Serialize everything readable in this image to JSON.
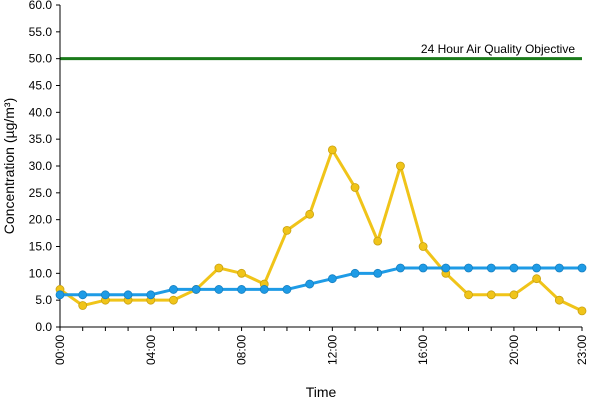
{
  "chart_data": {
    "type": "line",
    "title": "",
    "xlabel": "Time",
    "ylabel": "Concentration (µg/m³)",
    "ylim": [
      0,
      60
    ],
    "y_ticks": [
      "0.0",
      "5.0",
      "10.0",
      "15.0",
      "20.0",
      "25.0",
      "30.0",
      "35.0",
      "40.0",
      "45.0",
      "50.0",
      "55.0",
      "60.0"
    ],
    "x": [
      0,
      1,
      2,
      3,
      4,
      5,
      6,
      7,
      8,
      9,
      10,
      11,
      12,
      13,
      14,
      15,
      16,
      17,
      18,
      19,
      20,
      21,
      22,
      23
    ],
    "x_tick_labels": [
      {
        "x": 0,
        "label": "00:00"
      },
      {
        "x": 4,
        "label": "04:00"
      },
      {
        "x": 8,
        "label": "08:00"
      },
      {
        "x": 12,
        "label": "12:00"
      },
      {
        "x": 16,
        "label": "16:00"
      },
      {
        "x": 20,
        "label": "20:00"
      },
      {
        "x": 23,
        "label": "23:00"
      }
    ],
    "reference_line": {
      "value": 50.0,
      "label": "24 Hour Air Quality Objective",
      "color": "#1a7a1a"
    },
    "series": [
      {
        "color": "#f0c419",
        "values": [
          7,
          4,
          5,
          5,
          5,
          5,
          7,
          11,
          10,
          8,
          18,
          21,
          33,
          26,
          16,
          30,
          15,
          10,
          6,
          6,
          6,
          9,
          5,
          3
        ]
      },
      {
        "color": "#1e9be6",
        "values": [
          6,
          6,
          6,
          6,
          6,
          7,
          7,
          7,
          7,
          7,
          7,
          8,
          9,
          10,
          10,
          11,
          11,
          11,
          11,
          11,
          11,
          11,
          11,
          11
        ]
      }
    ],
    "grid": false,
    "legend": "none"
  }
}
